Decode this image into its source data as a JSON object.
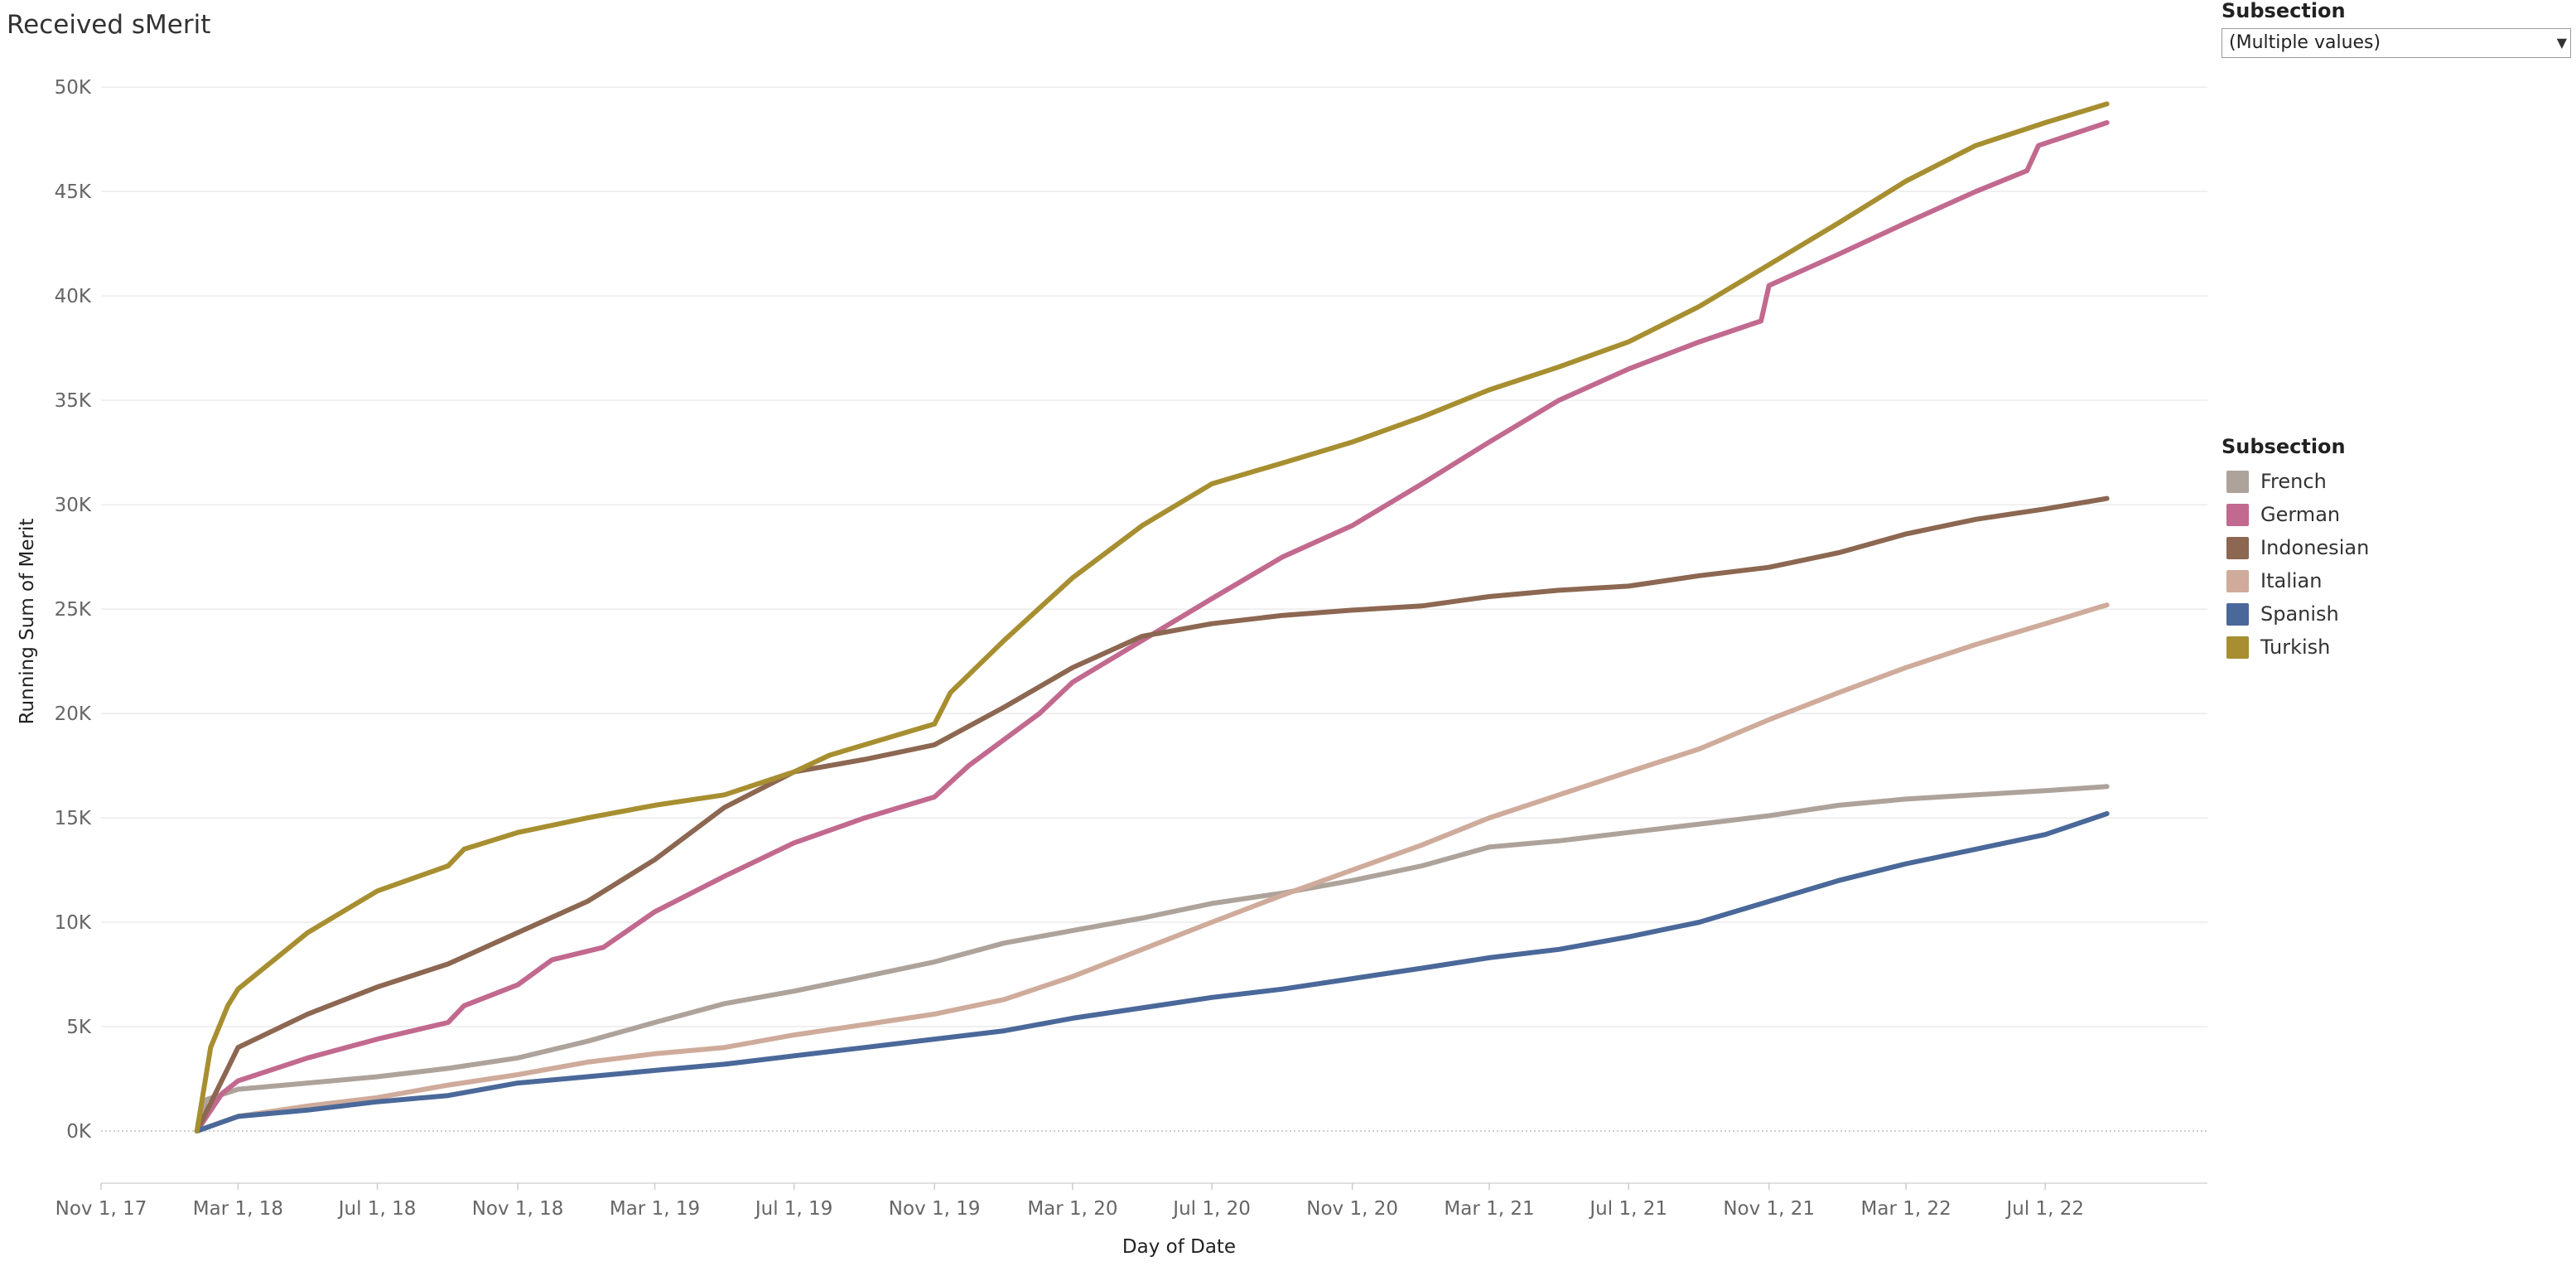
{
  "dashboard": {
    "title": "Received sMerit",
    "filter": {
      "label": "Subsection",
      "value": "(Multiple values)"
    }
  },
  "legend": {
    "title": "Subsection",
    "items": [
      {
        "label": "French",
        "color": "#aea39b"
      },
      {
        "label": "German",
        "color": "#c2698f"
      },
      {
        "label": "Indonesian",
        "color": "#8c6751"
      },
      {
        "label": "Italian",
        "color": "#cfab9b"
      },
      {
        "label": "Spanish",
        "color": "#4a6899"
      },
      {
        "label": "Turkish",
        "color": "#a78f31"
      }
    ]
  },
  "chart_data": {
    "type": "line",
    "title": "Received sMerit",
    "xlabel": "Day of Date",
    "ylabel": "Running Sum of Merit",
    "xlim": [
      "2017-11-01",
      "2022-11-20"
    ],
    "ylim": [
      -2500,
      51000
    ],
    "x_ticks": [
      "Nov 1, 17",
      "Mar 1, 18",
      "Jul 1, 18",
      "Nov 1, 18",
      "Mar 1, 19",
      "Jul 1, 19",
      "Nov 1, 19",
      "Mar 1, 20",
      "Jul 1, 20",
      "Nov 1, 20",
      "Mar 1, 21",
      "Jul 1, 21",
      "Nov 1, 21",
      "Mar 1, 22",
      "Jul 1, 22"
    ],
    "x_tick_dates": [
      "2017-11-01",
      "2018-03-01",
      "2018-07-01",
      "2018-11-01",
      "2019-03-01",
      "2019-07-01",
      "2019-11-01",
      "2020-03-01",
      "2020-07-01",
      "2020-11-01",
      "2021-03-01",
      "2021-07-01",
      "2021-11-01",
      "2022-03-01",
      "2022-07-01"
    ],
    "y_ticks": [
      0,
      5000,
      10000,
      15000,
      20000,
      25000,
      30000,
      35000,
      40000,
      45000,
      50000
    ],
    "y_tick_labels": [
      "0K",
      "5K",
      "10K",
      "15K",
      "20K",
      "25K",
      "30K",
      "35K",
      "40K",
      "45K",
      "50K"
    ],
    "grid": true,
    "legend_position": "right",
    "series": [
      {
        "name": "French",
        "color": "#aea39b",
        "points": [
          [
            "2018-01-24",
            0
          ],
          [
            "2018-02-01",
            1500
          ],
          [
            "2018-03-01",
            2000
          ],
          [
            "2018-05-01",
            2300
          ],
          [
            "2018-07-01",
            2600
          ],
          [
            "2018-09-01",
            3000
          ],
          [
            "2018-11-01",
            3500
          ],
          [
            "2019-01-01",
            4300
          ],
          [
            "2019-03-01",
            5200
          ],
          [
            "2019-05-01",
            6100
          ],
          [
            "2019-07-01",
            6700
          ],
          [
            "2019-09-01",
            7400
          ],
          [
            "2019-11-01",
            8100
          ],
          [
            "2020-01-01",
            9000
          ],
          [
            "2020-03-01",
            9600
          ],
          [
            "2020-05-01",
            10200
          ],
          [
            "2020-07-01",
            10900
          ],
          [
            "2020-09-01",
            11400
          ],
          [
            "2020-11-01",
            12000
          ],
          [
            "2021-01-01",
            12700
          ],
          [
            "2021-03-01",
            13600
          ],
          [
            "2021-05-01",
            13900
          ],
          [
            "2021-07-01",
            14300
          ],
          [
            "2021-09-01",
            14700
          ],
          [
            "2021-11-01",
            15100
          ],
          [
            "2022-01-01",
            15600
          ],
          [
            "2022-03-01",
            15900
          ],
          [
            "2022-05-01",
            16100
          ],
          [
            "2022-07-01",
            16300
          ],
          [
            "2022-08-24",
            16500
          ]
        ]
      },
      {
        "name": "German",
        "color": "#c2698f",
        "points": [
          [
            "2018-01-24",
            0
          ],
          [
            "2018-02-15",
            1800
          ],
          [
            "2018-03-01",
            2400
          ],
          [
            "2018-05-01",
            3500
          ],
          [
            "2018-07-01",
            4400
          ],
          [
            "2018-09-01",
            5200
          ],
          [
            "2018-09-15",
            6000
          ],
          [
            "2018-11-01",
            7000
          ],
          [
            "2018-12-01",
            8200
          ],
          [
            "2019-01-15",
            8800
          ],
          [
            "2019-03-01",
            10500
          ],
          [
            "2019-05-01",
            12200
          ],
          [
            "2019-07-01",
            13800
          ],
          [
            "2019-09-01",
            15000
          ],
          [
            "2019-11-01",
            16000
          ],
          [
            "2019-12-01",
            17500
          ],
          [
            "2020-02-01",
            20000
          ],
          [
            "2020-03-01",
            21500
          ],
          [
            "2020-05-01",
            23500
          ],
          [
            "2020-07-01",
            25500
          ],
          [
            "2020-09-01",
            27500
          ],
          [
            "2020-11-01",
            29000
          ],
          [
            "2021-01-01",
            31000
          ],
          [
            "2021-03-01",
            33000
          ],
          [
            "2021-05-01",
            35000
          ],
          [
            "2021-07-01",
            36500
          ],
          [
            "2021-09-01",
            37800
          ],
          [
            "2021-10-25",
            38800
          ],
          [
            "2021-11-01",
            40500
          ],
          [
            "2022-01-01",
            42000
          ],
          [
            "2022-03-01",
            43500
          ],
          [
            "2022-05-01",
            45000
          ],
          [
            "2022-06-15",
            46000
          ],
          [
            "2022-06-25",
            47200
          ],
          [
            "2022-08-24",
            48300
          ]
        ]
      },
      {
        "name": "Indonesian",
        "color": "#8c6751",
        "points": [
          [
            "2018-01-24",
            0
          ],
          [
            "2018-02-20",
            3000
          ],
          [
            "2018-03-01",
            4000
          ],
          [
            "2018-05-01",
            5600
          ],
          [
            "2018-07-01",
            6900
          ],
          [
            "2018-09-01",
            8000
          ],
          [
            "2018-11-01",
            9500
          ],
          [
            "2019-01-01",
            11000
          ],
          [
            "2019-03-01",
            13000
          ],
          [
            "2019-05-01",
            15500
          ],
          [
            "2019-07-01",
            17200
          ],
          [
            "2019-09-01",
            17800
          ],
          [
            "2019-11-01",
            18500
          ],
          [
            "2020-01-01",
            20300
          ],
          [
            "2020-03-01",
            22200
          ],
          [
            "2020-05-01",
            23700
          ],
          [
            "2020-07-01",
            24300
          ],
          [
            "2020-09-01",
            24700
          ],
          [
            "2020-11-01",
            24950
          ],
          [
            "2021-01-01",
            25150
          ],
          [
            "2021-03-01",
            25600
          ],
          [
            "2021-05-01",
            25900
          ],
          [
            "2021-07-01",
            26100
          ],
          [
            "2021-09-01",
            26600
          ],
          [
            "2021-11-01",
            27000
          ],
          [
            "2022-01-01",
            27700
          ],
          [
            "2022-03-01",
            28600
          ],
          [
            "2022-05-01",
            29300
          ],
          [
            "2022-07-01",
            29800
          ],
          [
            "2022-08-24",
            30300
          ]
        ]
      },
      {
        "name": "Italian",
        "color": "#cfab9b",
        "points": [
          [
            "2018-01-24",
            0
          ],
          [
            "2018-03-01",
            700
          ],
          [
            "2018-05-01",
            1200
          ],
          [
            "2018-07-01",
            1600
          ],
          [
            "2018-09-01",
            2200
          ],
          [
            "2018-11-01",
            2700
          ],
          [
            "2019-01-01",
            3300
          ],
          [
            "2019-03-01",
            3700
          ],
          [
            "2019-05-01",
            4000
          ],
          [
            "2019-07-01",
            4600
          ],
          [
            "2019-09-01",
            5100
          ],
          [
            "2019-11-01",
            5600
          ],
          [
            "2020-01-01",
            6300
          ],
          [
            "2020-03-01",
            7400
          ],
          [
            "2020-05-01",
            8700
          ],
          [
            "2020-07-01",
            10000
          ],
          [
            "2020-09-01",
            11300
          ],
          [
            "2020-11-01",
            12500
          ],
          [
            "2021-01-01",
            13700
          ],
          [
            "2021-03-01",
            15000
          ],
          [
            "2021-05-01",
            16100
          ],
          [
            "2021-07-01",
            17200
          ],
          [
            "2021-09-01",
            18300
          ],
          [
            "2021-11-01",
            19700
          ],
          [
            "2022-01-01",
            21000
          ],
          [
            "2022-03-01",
            22200
          ],
          [
            "2022-05-01",
            23300
          ],
          [
            "2022-07-01",
            24300
          ],
          [
            "2022-08-24",
            25200
          ]
        ]
      },
      {
        "name": "Spanish",
        "color": "#4a6899",
        "points": [
          [
            "2018-01-24",
            0
          ],
          [
            "2018-03-01",
            700
          ],
          [
            "2018-05-01",
            1000
          ],
          [
            "2018-07-01",
            1400
          ],
          [
            "2018-09-01",
            1700
          ],
          [
            "2018-11-01",
            2300
          ],
          [
            "2019-01-01",
            2600
          ],
          [
            "2019-03-01",
            2900
          ],
          [
            "2019-05-01",
            3200
          ],
          [
            "2019-07-01",
            3600
          ],
          [
            "2019-09-01",
            4000
          ],
          [
            "2019-11-01",
            4400
          ],
          [
            "2020-01-01",
            4800
          ],
          [
            "2020-03-01",
            5400
          ],
          [
            "2020-05-01",
            5900
          ],
          [
            "2020-07-01",
            6400
          ],
          [
            "2020-09-01",
            6800
          ],
          [
            "2020-11-01",
            7300
          ],
          [
            "2021-01-01",
            7800
          ],
          [
            "2021-03-01",
            8300
          ],
          [
            "2021-05-01",
            8700
          ],
          [
            "2021-07-01",
            9300
          ],
          [
            "2021-09-01",
            10000
          ],
          [
            "2021-11-01",
            11000
          ],
          [
            "2022-01-01",
            12000
          ],
          [
            "2022-03-01",
            12800
          ],
          [
            "2022-05-01",
            13500
          ],
          [
            "2022-07-01",
            14200
          ],
          [
            "2022-08-24",
            15200
          ]
        ]
      },
      {
        "name": "Turkish",
        "color": "#a78f31",
        "points": [
          [
            "2018-01-24",
            0
          ],
          [
            "2018-02-05",
            4000
          ],
          [
            "2018-02-20",
            6000
          ],
          [
            "2018-03-01",
            6800
          ],
          [
            "2018-05-01",
            9500
          ],
          [
            "2018-07-01",
            11500
          ],
          [
            "2018-09-01",
            12700
          ],
          [
            "2018-09-15",
            13500
          ],
          [
            "2018-11-01",
            14300
          ],
          [
            "2019-01-01",
            15000
          ],
          [
            "2019-03-01",
            15600
          ],
          [
            "2019-05-01",
            16100
          ],
          [
            "2019-07-01",
            17200
          ],
          [
            "2019-08-01",
            18000
          ],
          [
            "2019-11-01",
            19500
          ],
          [
            "2019-11-15",
            21000
          ],
          [
            "2020-01-01",
            23500
          ],
          [
            "2020-03-01",
            26500
          ],
          [
            "2020-05-01",
            29000
          ],
          [
            "2020-07-01",
            31000
          ],
          [
            "2020-09-01",
            32000
          ],
          [
            "2020-11-01",
            33000
          ],
          [
            "2021-01-01",
            34200
          ],
          [
            "2021-03-01",
            35500
          ],
          [
            "2021-05-01",
            36600
          ],
          [
            "2021-07-01",
            37800
          ],
          [
            "2021-09-01",
            39500
          ],
          [
            "2021-11-01",
            41500
          ],
          [
            "2022-01-01",
            43500
          ],
          [
            "2022-03-01",
            45500
          ],
          [
            "2022-05-01",
            47200
          ],
          [
            "2022-07-01",
            48300
          ],
          [
            "2022-08-24",
            49200
          ]
        ]
      }
    ]
  }
}
